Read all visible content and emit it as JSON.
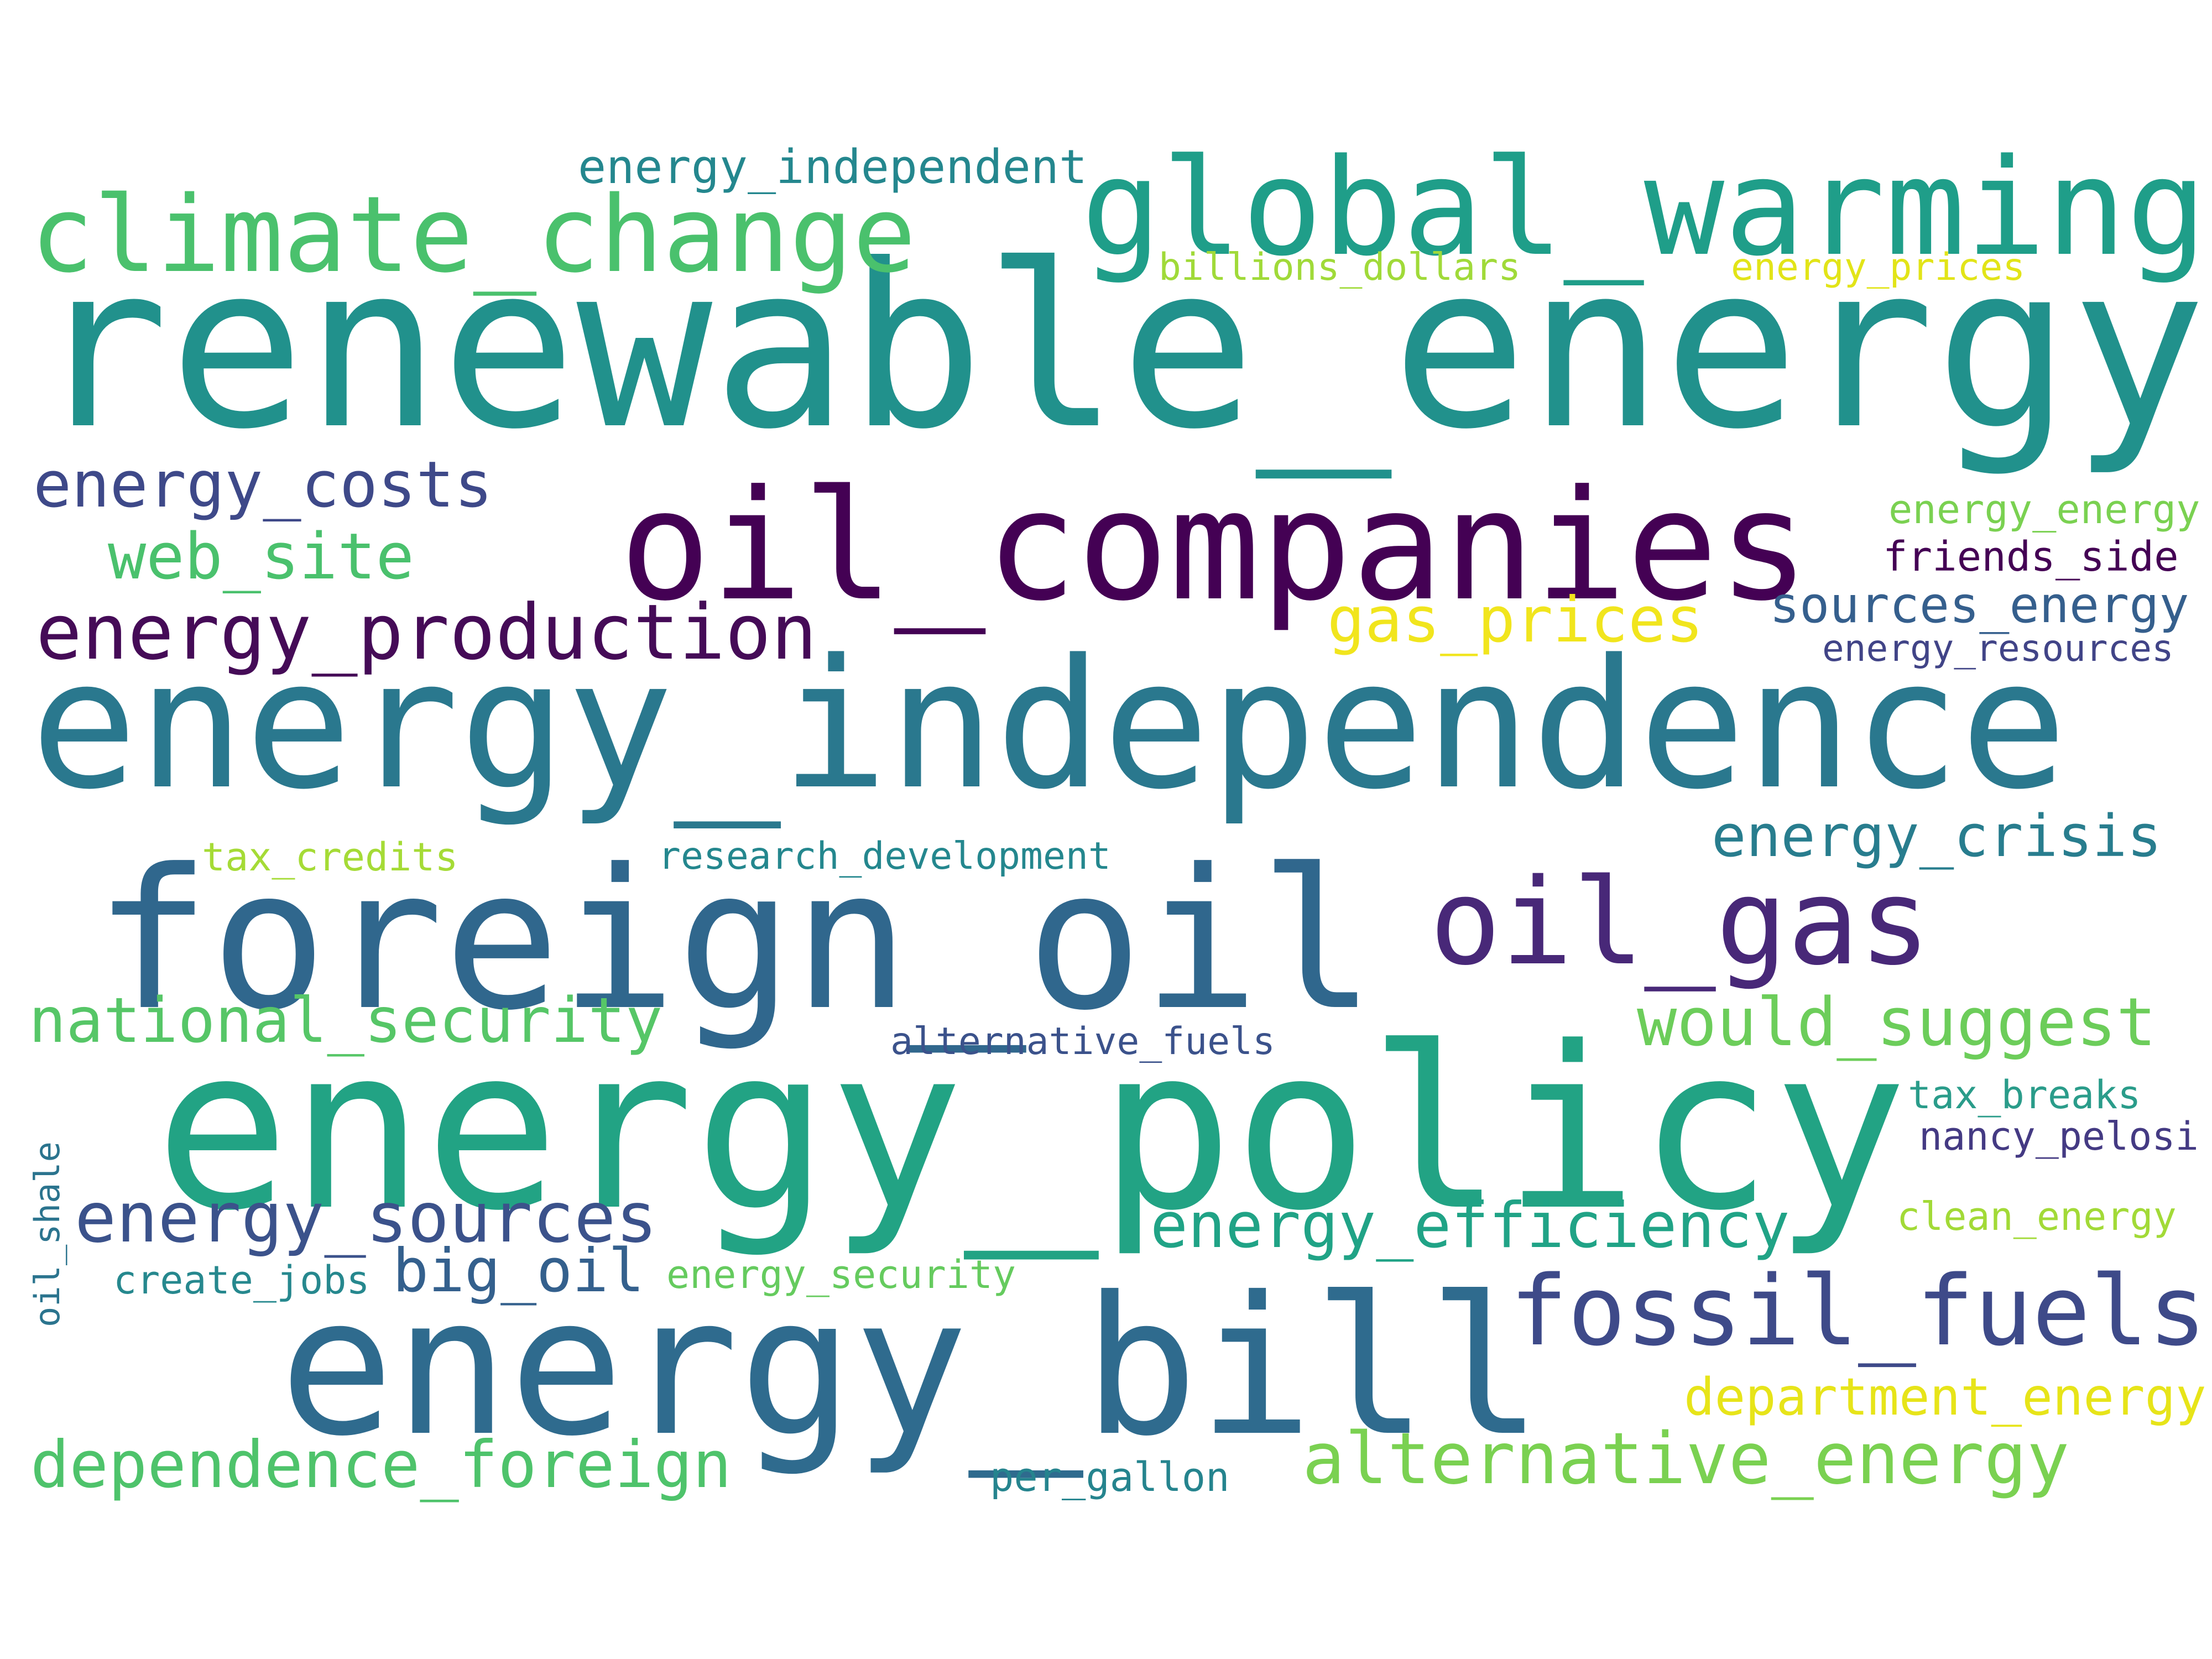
{
  "words": [
    {
      "text": "renewable_energy",
      "color": "#21918c"
    },
    {
      "text": "energy_independence",
      "color": "#2a788e"
    },
    {
      "text": "energy_policy",
      "color": "#22a384"
    },
    {
      "text": "oil_companies",
      "color": "#440154"
    },
    {
      "text": "energy_bill",
      "color": "#2f6b8e"
    },
    {
      "text": "foreign_oil",
      "color": "#30678d"
    },
    {
      "text": "global_warming",
      "color": "#1f9e89"
    },
    {
      "text": "climate_change",
      "color": "#4ac16d"
    },
    {
      "text": "oil_gas",
      "color": "#482878"
    },
    {
      "text": "fossil_fuels",
      "color": "#3e4a89"
    },
    {
      "text": "energy_production",
      "color": "#450b57"
    },
    {
      "text": "energy_costs",
      "color": "#3e4989"
    },
    {
      "text": "web_site",
      "color": "#4ac16d"
    },
    {
      "text": "energy_sources",
      "color": "#3b528b"
    },
    {
      "text": "national_security",
      "color": "#56c667"
    },
    {
      "text": "alternative_energy",
      "color": "#7ad151"
    },
    {
      "text": "dependence_foreign",
      "color": "#4ec36b"
    },
    {
      "text": "energy_efficiency",
      "color": "#20a386"
    },
    {
      "text": "would_suggest",
      "color": "#6ccd5a"
    },
    {
      "text": "big_oil",
      "color": "#34608d"
    },
    {
      "text": "gas_prices",
      "color": "#f1e51d"
    },
    {
      "text": "energy_crisis",
      "color": "#287d8e"
    },
    {
      "text": "department_energy",
      "color": "#e7e419"
    },
    {
      "text": "sources_energy",
      "color": "#355f8d"
    },
    {
      "text": "energy_independent",
      "color": "#24878e"
    },
    {
      "text": "energy_energy",
      "color": "#7ad151"
    },
    {
      "text": "friends_side",
      "color": "#440154"
    },
    {
      "text": "energy_resources",
      "color": "#414487"
    },
    {
      "text": "billions_dollars",
      "color": "#a0da39"
    },
    {
      "text": "energy_prices",
      "color": "#e2e418"
    },
    {
      "text": "tax_credits",
      "color": "#a5db36"
    },
    {
      "text": "research_development",
      "color": "#24878e"
    },
    {
      "text": "alternative_fuels",
      "color": "#3b528b"
    },
    {
      "text": "tax_breaks",
      "color": "#2a9c8a"
    },
    {
      "text": "nancy_pelosi",
      "color": "#443a83"
    },
    {
      "text": "clean_energy",
      "color": "#a2da37"
    },
    {
      "text": "create_jobs",
      "color": "#26888e"
    },
    {
      "text": "energy_security",
      "color": "#65cb5e"
    },
    {
      "text": "per_gallon",
      "color": "#25848e"
    },
    {
      "text": "oil_shale",
      "color": "#2b748e"
    }
  ]
}
